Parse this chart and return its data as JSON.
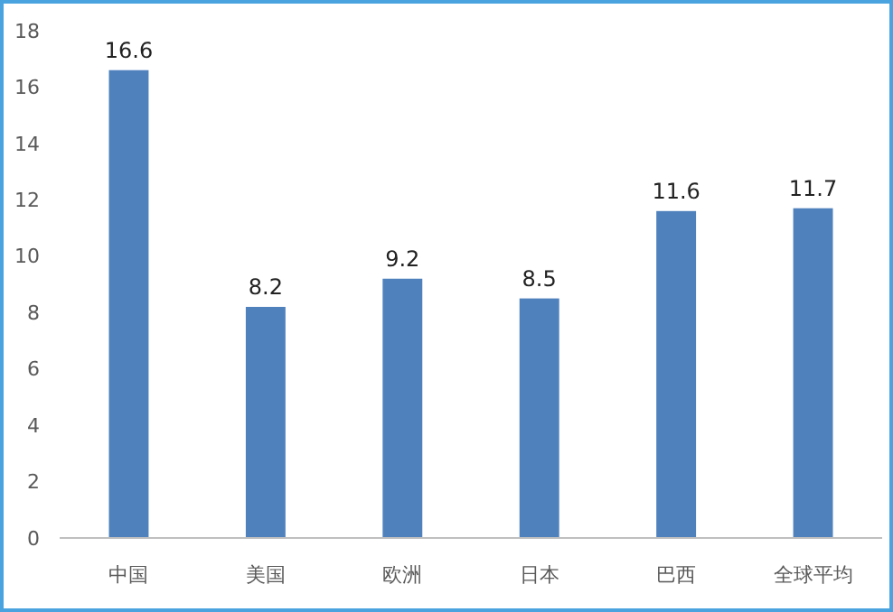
{
  "chart_data": {
    "type": "bar",
    "categories": [
      "中国",
      "美国",
      "欧洲",
      "日本",
      "巴西",
      "全球平均"
    ],
    "values": [
      16.6,
      8.2,
      9.2,
      8.5,
      11.6,
      11.7
    ],
    "color": "#4f81bd",
    "ylim": [
      0,
      18
    ],
    "yticks": [
      0,
      2,
      4,
      6,
      8,
      10,
      12,
      14,
      16,
      18
    ],
    "grid": false,
    "data_labels": true
  }
}
